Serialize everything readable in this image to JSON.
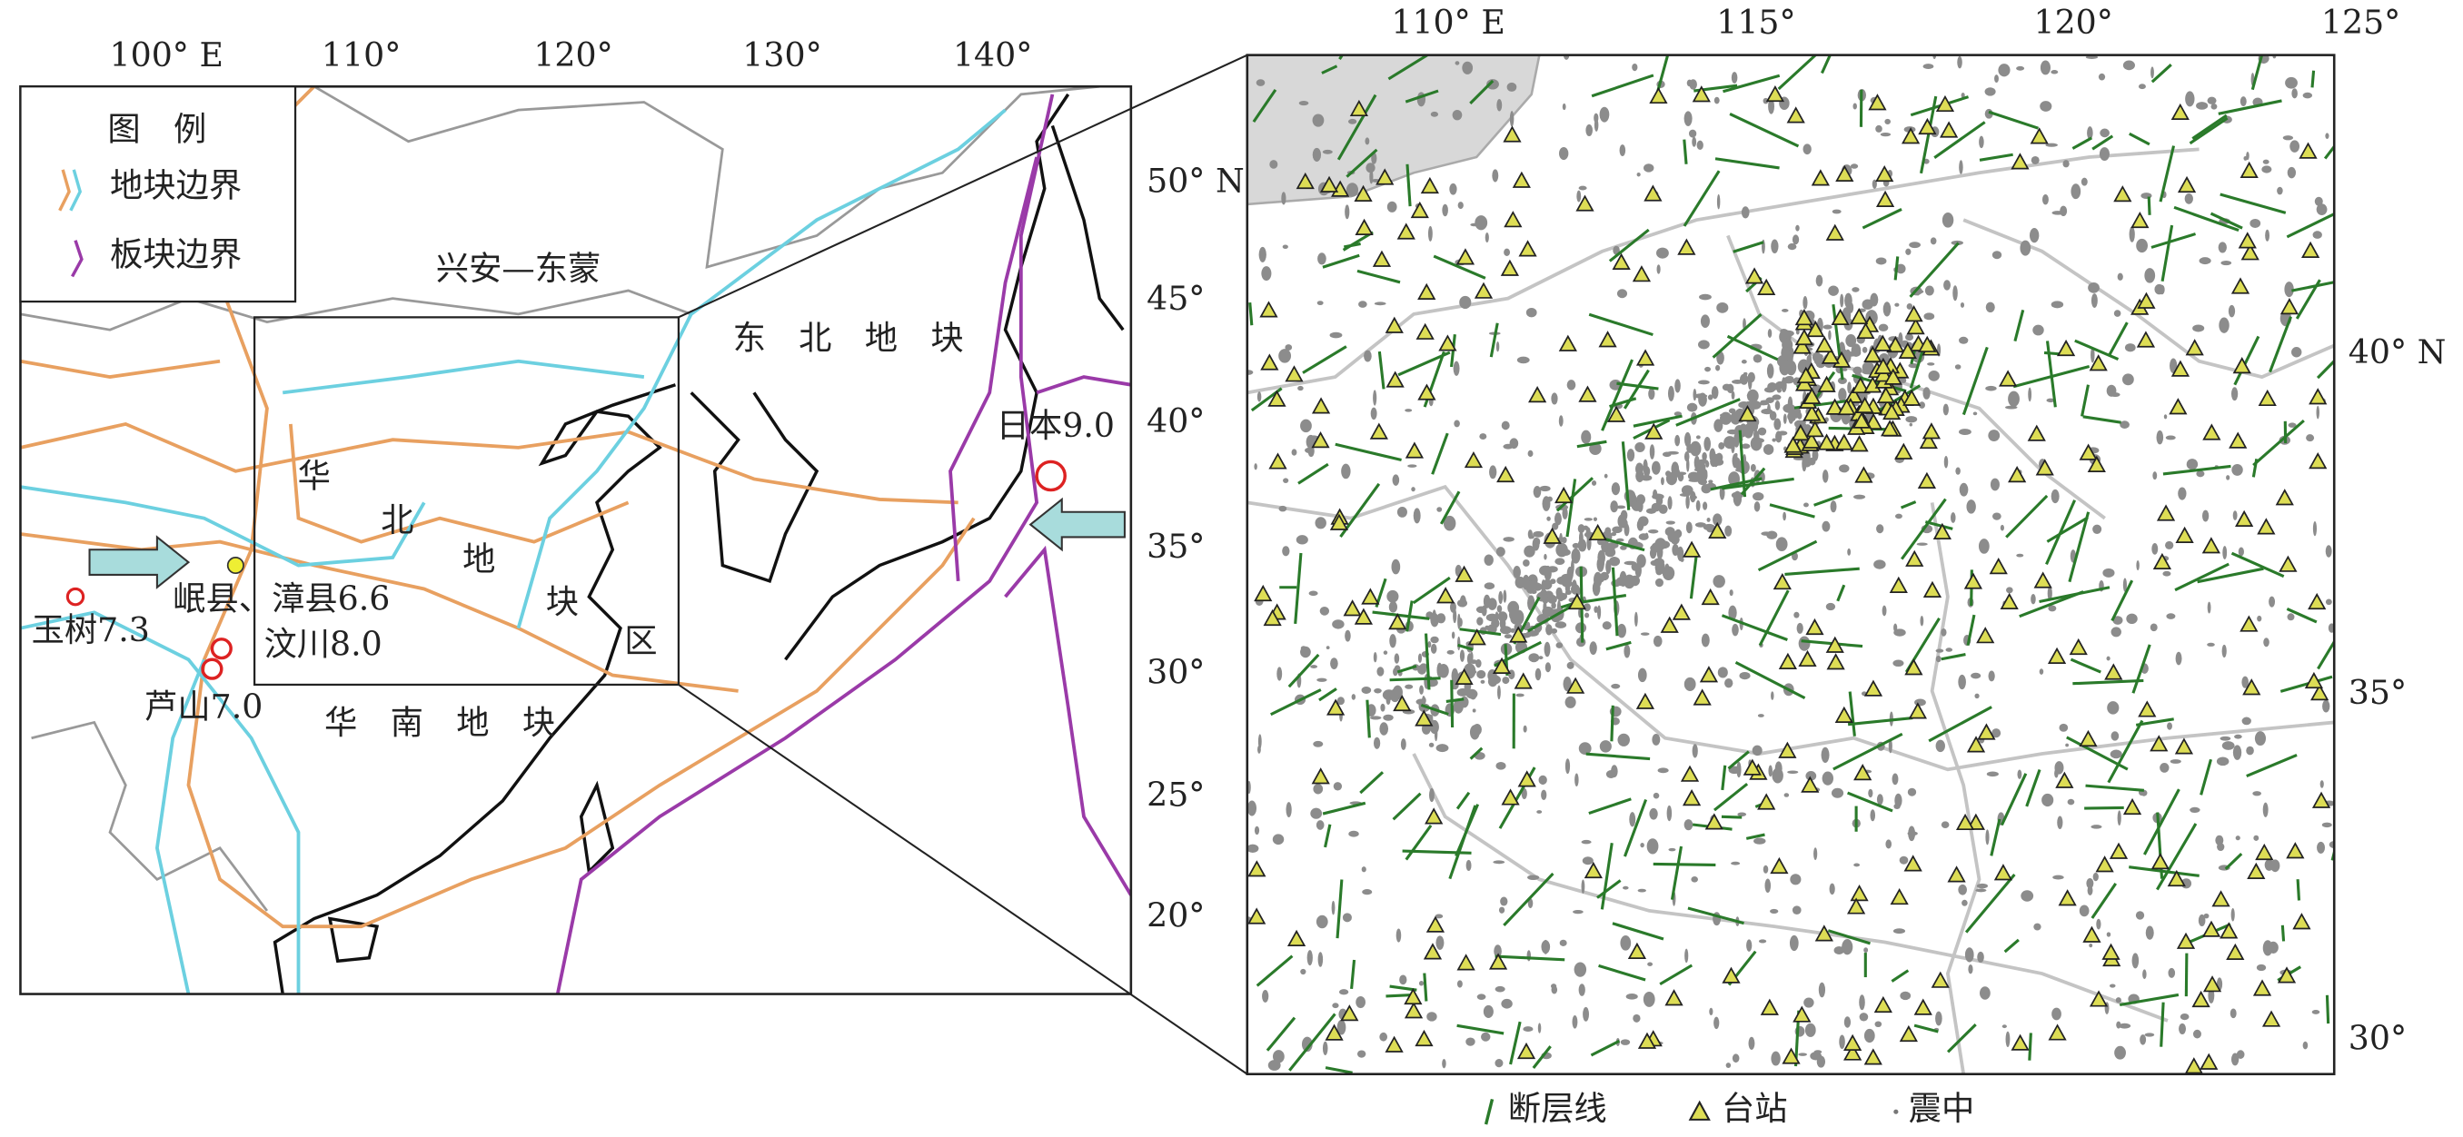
{
  "left_map": {
    "legend": {
      "title": "图　例",
      "items": [
        "地块边界",
        "板块边界"
      ]
    },
    "lon_ticks": [
      "100° E",
      "110°",
      "120°",
      "130°",
      "140°"
    ],
    "lat_ticks": [
      "50° N",
      "45°",
      "40°",
      "35°",
      "30°",
      "25°",
      "20°"
    ],
    "labels": [
      "兴安—东蒙",
      "东　北　地　块",
      "日本9.0",
      "华",
      "北",
      "地",
      "块",
      "区",
      "岷县、漳县6.6",
      "汶川8.0",
      "玉树7.3",
      "芦山7.0",
      "华　南　地　块"
    ]
  },
  "right_map": {
    "lon_ticks": [
      "110° E",
      "115°",
      "120°",
      "125°"
    ],
    "lat_ticks": [
      "40° N",
      "35°",
      "30°"
    ]
  },
  "bottom_legend": [
    "断层线",
    "台站",
    "震中"
  ]
}
